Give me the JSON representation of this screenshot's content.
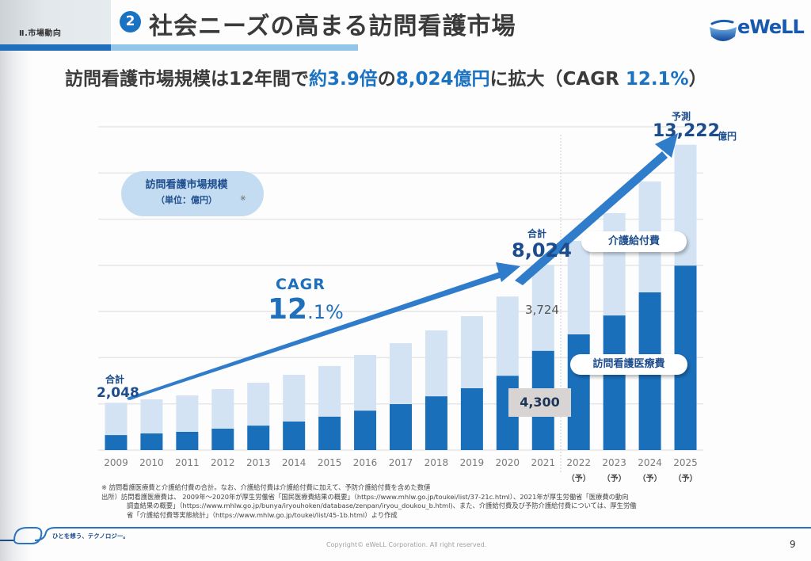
{
  "header": {
    "section_label": "Ⅱ.市場動向",
    "section_number": "2",
    "title": "社会ニーズの高まる訪問看護市場",
    "logo_text": "eWeLL"
  },
  "headline": {
    "part1": "訪問看護市場規模は12年間で",
    "highlight1": "約3.9倍",
    "part2": "の",
    "highlight2": "8,024億円",
    "part3": "に拡大（CAGR ",
    "highlight3": "12.1%",
    "part4": "）"
  },
  "legend": {
    "title": "訪問看護市場規模",
    "unit": "（単位：億円）",
    "mark": "※"
  },
  "annotations": {
    "start_total_label": "合計",
    "start_total_value": "2,048",
    "cagr_word": "CAGR",
    "cagr_big": "12",
    "cagr_small": ".1%",
    "mid_total_label": "合計",
    "mid_total_value": "8,024",
    "forecast_label": "予測",
    "forecast_value": "13,222",
    "forecast_unit": "億円",
    "care_value_2021": "3,724",
    "medical_value_2021": "4,300",
    "pill_care": "介護給付費",
    "pill_medical": "訪問看護医療費",
    "forecast_suffix": "（予）"
  },
  "chart_data": {
    "type": "bar",
    "stacked": true,
    "title": "訪問看護市場規模（単位：億円）",
    "xlabel": "",
    "ylabel": "億円",
    "ylim": [
      0,
      14000
    ],
    "grid": true,
    "categories": [
      "2009",
      "2010",
      "2011",
      "2012",
      "2013",
      "2014",
      "2015",
      "2016",
      "2017",
      "2018",
      "2019",
      "2020",
      "2021",
      "2022",
      "2023",
      "2024",
      "2025"
    ],
    "forecast_from": "2022",
    "series": [
      {
        "name": "訪問看護医療費",
        "color": "#1a6fbb",
        "values": [
          650,
          720,
          790,
          930,
          1060,
          1240,
          1450,
          1710,
          1990,
          2330,
          2680,
          3220,
          4300,
          5010,
          5830,
          6830,
          7990
        ]
      },
      {
        "name": "介護給付費",
        "color": "#d3e3f3",
        "values": [
          1398,
          1476,
          1577,
          1710,
          1856,
          2020,
          2190,
          2410,
          2640,
          2850,
          3120,
          3430,
          3724,
          4050,
          4430,
          4800,
          5232
        ]
      }
    ],
    "totals": [
      2048,
      2196,
      2367,
      2640,
      2916,
      3260,
      3640,
      4120,
      4630,
      5180,
      5800,
      6650,
      8024,
      9060,
      10260,
      11630,
      13222
    ],
    "annotations": [
      "合計 2,048 (2009)",
      "合計 8,024 (2021)",
      "予測 13,222 億円 (2025)",
      "CAGR 12.1%"
    ]
  },
  "notes": {
    "line1": "※ 訪問看護医療費と介護給付費の合計。なお、介護給付費は介護給付費に加えて、予防介護給付費を含めた数値",
    "line2": "出所）訪問看護医療費は、 2009年～2020年が厚生労働省「国民医療費結果の概要」（https://www.mhlw.go.jp/toukei/list/37-21c.html）、2021年が厚生労働省「医療費の動向",
    "line3": "調査結果の概要」（https://www.mhlw.go.jp/bunya/iryouhoken/database/zenpan/iryou_doukou_b.html)、また、介護給付費及び予防介護給付費については、厚生労働",
    "line4": "省「介護給付費等実態統計」（https://www.mhlw.go.jp/toukei/list/45-1b.html）より作成"
  },
  "footer": {
    "tagline": "ひとを想う、テクノロジー。",
    "copyright": "Copyright© eWeLL Corporation. All right reserved.",
    "page_number": "9"
  },
  "colors": {
    "accent": "#1a72c2",
    "dark_bar": "#1a6fbb",
    "light_bar": "#d3e3f3",
    "text_navy": "#1c4c8c"
  }
}
